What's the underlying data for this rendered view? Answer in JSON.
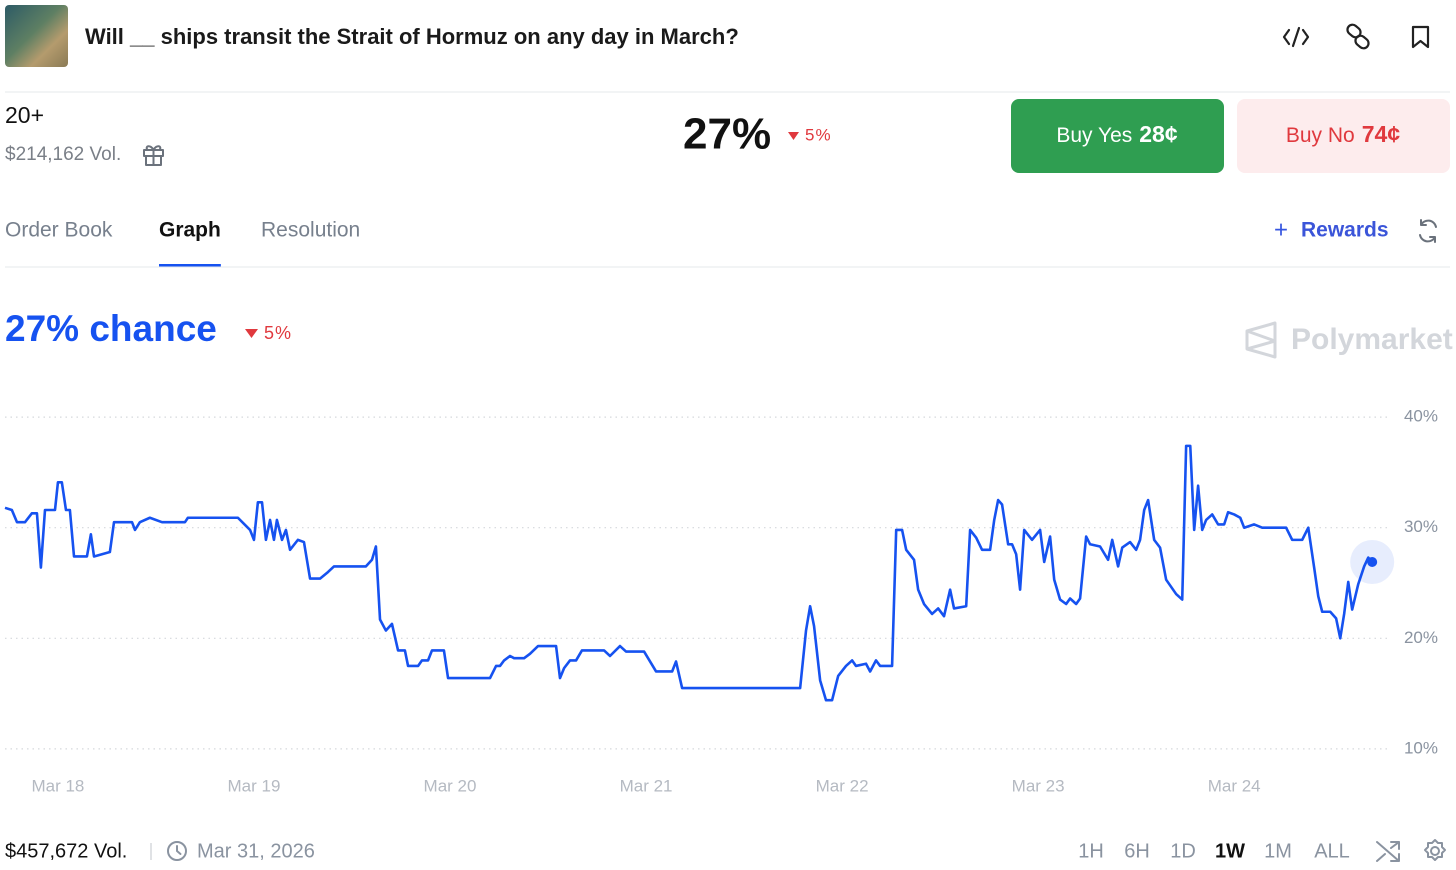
{
  "header": {
    "title": "Will __ ships transit the Strait of Hormuz on any day in March?"
  },
  "market": {
    "outcome": "20+",
    "volume": "$214,162 Vol.",
    "probability": "27%",
    "change": "5%",
    "buy_yes": {
      "label": "Buy Yes",
      "price": "28¢"
    },
    "buy_no": {
      "label": "Buy No",
      "price": "74¢"
    }
  },
  "tabs": {
    "items": [
      "Order Book",
      "Graph",
      "Resolution"
    ],
    "active": 1,
    "rewards": "Rewards"
  },
  "chart_data": {
    "type": "line",
    "title": "27% chance",
    "change_label": "5%",
    "watermark": "Polymarket",
    "color": "#1652f0",
    "grid": true,
    "y_axis_side": "right",
    "x": [
      -0.27,
      -0.235,
      -0.209,
      -0.168,
      -0.133,
      -0.107,
      -0.087,
      -0.066,
      -0.015,
      0,
      0.02,
      0.041,
      0.061,
      0.082,
      0.148,
      0.168,
      0.184,
      0.265,
      0.286,
      0.378,
      0.393,
      0.418,
      0.469,
      0.531,
      0.648,
      0.663,
      0.918,
      0.98,
      1.0,
      1.02,
      1.041,
      1.061,
      1.082,
      1.102,
      1.117,
      1.143,
      1.163,
      1.184,
      1.224,
      1.255,
      1.286,
      1.337,
      1.378,
      1.408,
      1.571,
      1.602,
      1.622,
      1.643,
      1.673,
      1.704,
      1.735,
      1.77,
      1.786,
      1.837,
      1.857,
      1.888,
      1.908,
      1.969,
      1.99,
      2.204,
      2.235,
      2.255,
      2.276,
      2.306,
      2.327,
      2.378,
      2.408,
      2.449,
      2.541,
      2.561,
      2.582,
      2.612,
      2.643,
      2.673,
      2.786,
      2.816,
      2.867,
      2.898,
      2.99,
      3.051,
      3.133,
      3.153,
      3.184,
      3.786,
      3.816,
      3.837,
      3.857,
      3.888,
      3.918,
      3.949,
      3.98,
      4.02,
      4.051,
      4.071,
      4.122,
      4.143,
      4.173,
      4.194,
      4.255,
      4.276,
      4.306,
      4.327,
      4.367,
      4.388,
      4.418,
      4.459,
      4.49,
      4.52,
      4.551,
      4.571,
      4.633,
      4.653,
      4.684,
      4.714,
      4.755,
      4.776,
      4.796,
      4.816,
      4.847,
      4.867,
      4.888,
      4.908,
      4.929,
      4.969,
      5.01,
      5.031,
      5.061,
      5.082,
      5.112,
      5.143,
      5.163,
      5.194,
      5.214,
      5.245,
      5.265,
      5.316,
      5.357,
      5.378,
      5.408,
      5.429,
      5.469,
      5.5,
      5.52,
      5.541,
      5.561,
      5.592,
      5.622,
      5.653,
      5.704,
      5.735,
      5.755,
      5.776,
      5.796,
      5.816,
      5.837,
      5.857,
      5.888,
      5.918,
      5.949,
      5.969,
      6.0,
      6.031,
      6.051,
      6.102,
      6.143,
      6.265,
      6.296,
      6.347,
      6.378,
      6.408,
      6.429,
      6.449,
      6.49,
      6.52,
      6.541,
      6.561,
      6.582,
      6.602,
      6.633,
      6.663,
      6.684,
      6.704
    ],
    "values": [
      31.8,
      31.6,
      30.5,
      30.5,
      31.3,
      31.3,
      26.4,
      31.6,
      31.6,
      34.1,
      34.1,
      31.6,
      31.6,
      27.4,
      27.4,
      29.4,
      27.4,
      27.8,
      30.5,
      30.5,
      29.8,
      30.5,
      30.9,
      30.5,
      30.5,
      30.9,
      30.9,
      29.8,
      28.9,
      32.3,
      32.3,
      28.9,
      30.7,
      28.9,
      30.7,
      28.9,
      29.8,
      28.0,
      28.9,
      28.7,
      25.4,
      25.4,
      26.0,
      26.5,
      26.5,
      27.1,
      28.3,
      21.7,
      20.7,
      21.3,
      18.9,
      18.9,
      17.5,
      17.5,
      18.0,
      18.0,
      18.9,
      18.9,
      16.4,
      16.4,
      17.5,
      17.5,
      18.0,
      18.4,
      18.2,
      18.2,
      18.6,
      19.3,
      19.3,
      16.4,
      17.3,
      18.0,
      18.0,
      18.9,
      18.9,
      18.4,
      19.3,
      18.8,
      18.8,
      17.0,
      17.0,
      17.9,
      15.5,
      15.5,
      20.7,
      22.9,
      21.1,
      16.2,
      14.4,
      14.4,
      16.6,
      17.5,
      18.0,
      17.5,
      17.7,
      17.0,
      18.0,
      17.5,
      17.5,
      29.8,
      29.8,
      28.0,
      27.1,
      24.4,
      23.1,
      22.2,
      22.7,
      22.0,
      24.4,
      22.7,
      22.9,
      29.8,
      29.1,
      28.0,
      28.0,
      30.7,
      32.5,
      32.1,
      28.5,
      28.5,
      27.6,
      24.4,
      29.8,
      28.9,
      29.8,
      26.9,
      29.2,
      25.3,
      23.5,
      23.1,
      23.6,
      23.1,
      23.6,
      29.2,
      28.5,
      28.3,
      27.1,
      28.9,
      26.5,
      28.2,
      28.7,
      28.0,
      28.9,
      31.6,
      32.5,
      28.9,
      28.2,
      25.3,
      24.0,
      23.5,
      37.4,
      37.4,
      29.8,
      33.8,
      29.8,
      30.7,
      31.2,
      30.3,
      30.3,
      31.4,
      31.2,
      30.9,
      30.0,
      30.3,
      30.0,
      30.0,
      28.9,
      28.9,
      30.0,
      26.4,
      23.8,
      22.4,
      22.4,
      21.8,
      20.0,
      22.2,
      25.1,
      22.6,
      24.9,
      26.5,
      27.3,
      26.9
    ],
    "xlim": [
      -0.27,
      6.8
    ],
    "ylim": [
      8,
      42
    ],
    "xticks": [
      {
        "value": 0,
        "label": "Mar 18"
      },
      {
        "value": 1,
        "label": "Mar 19"
      },
      {
        "value": 2,
        "label": "Mar 20"
      },
      {
        "value": 3,
        "label": "Mar 21"
      },
      {
        "value": 4,
        "label": "Mar 22"
      },
      {
        "value": 5,
        "label": "Mar 23"
      },
      {
        "value": 6,
        "label": "Mar 24"
      }
    ],
    "yticks": [
      {
        "value": 10,
        "label": "10%"
      },
      {
        "value": 20,
        "label": "20%"
      },
      {
        "value": 30,
        "label": "30%"
      },
      {
        "value": 40,
        "label": "40%"
      }
    ]
  },
  "footer": {
    "volume": "$457,672 Vol.",
    "end_date": "Mar 31, 2026",
    "ranges": [
      "1H",
      "6H",
      "1D",
      "1W",
      "1M",
      "ALL"
    ],
    "active_range": 3
  }
}
